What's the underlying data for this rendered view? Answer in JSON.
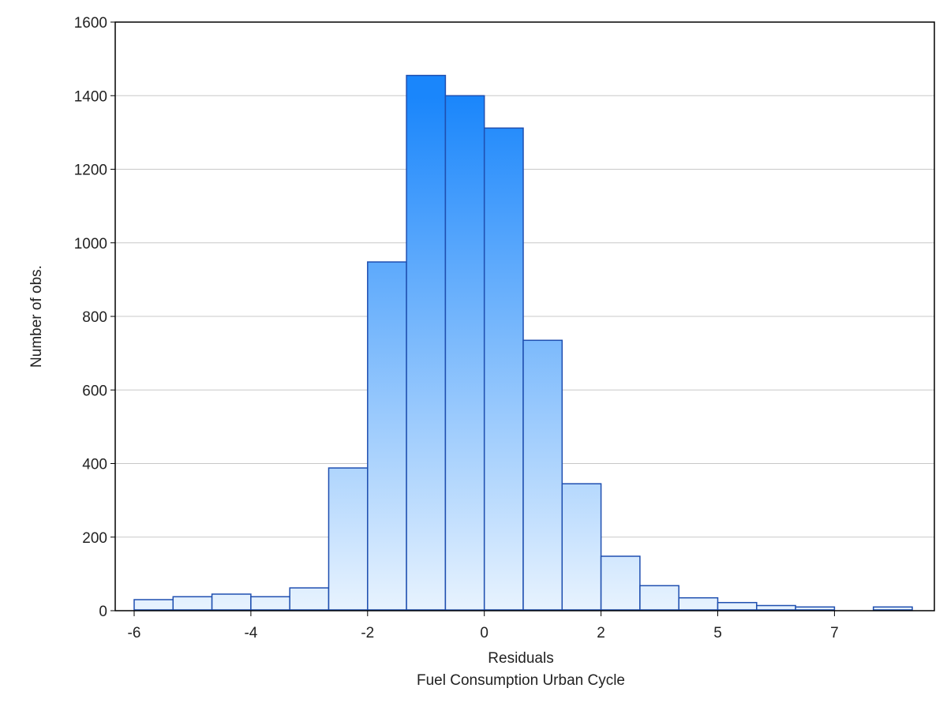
{
  "chart_data": {
    "type": "bar",
    "title": "",
    "xlabel": "Residuals",
    "xlabel_sub": "Fuel Consumption Urban Cycle",
    "ylabel": "Number of obs.",
    "ylim": [
      0,
      1600
    ],
    "yticks": [
      0,
      200,
      400,
      600,
      800,
      1000,
      1200,
      1400,
      1600
    ],
    "x_tick_labels": [
      "-6",
      "-4",
      "-2",
      "0",
      "2",
      "5",
      "7"
    ],
    "x_tick_bins": [
      0,
      3,
      6,
      9,
      12,
      15,
      18
    ],
    "grid": true,
    "bar_color_top": "#1a86fb",
    "bar_color_bottom": "#e8f3fe",
    "bar_edge_color": "#1f4fb0",
    "values": [
      30,
      38,
      45,
      38,
      62,
      388,
      948,
      1455,
      1400,
      1312,
      735,
      345,
      148,
      68,
      35,
      22,
      14,
      10,
      0,
      10
    ]
  }
}
